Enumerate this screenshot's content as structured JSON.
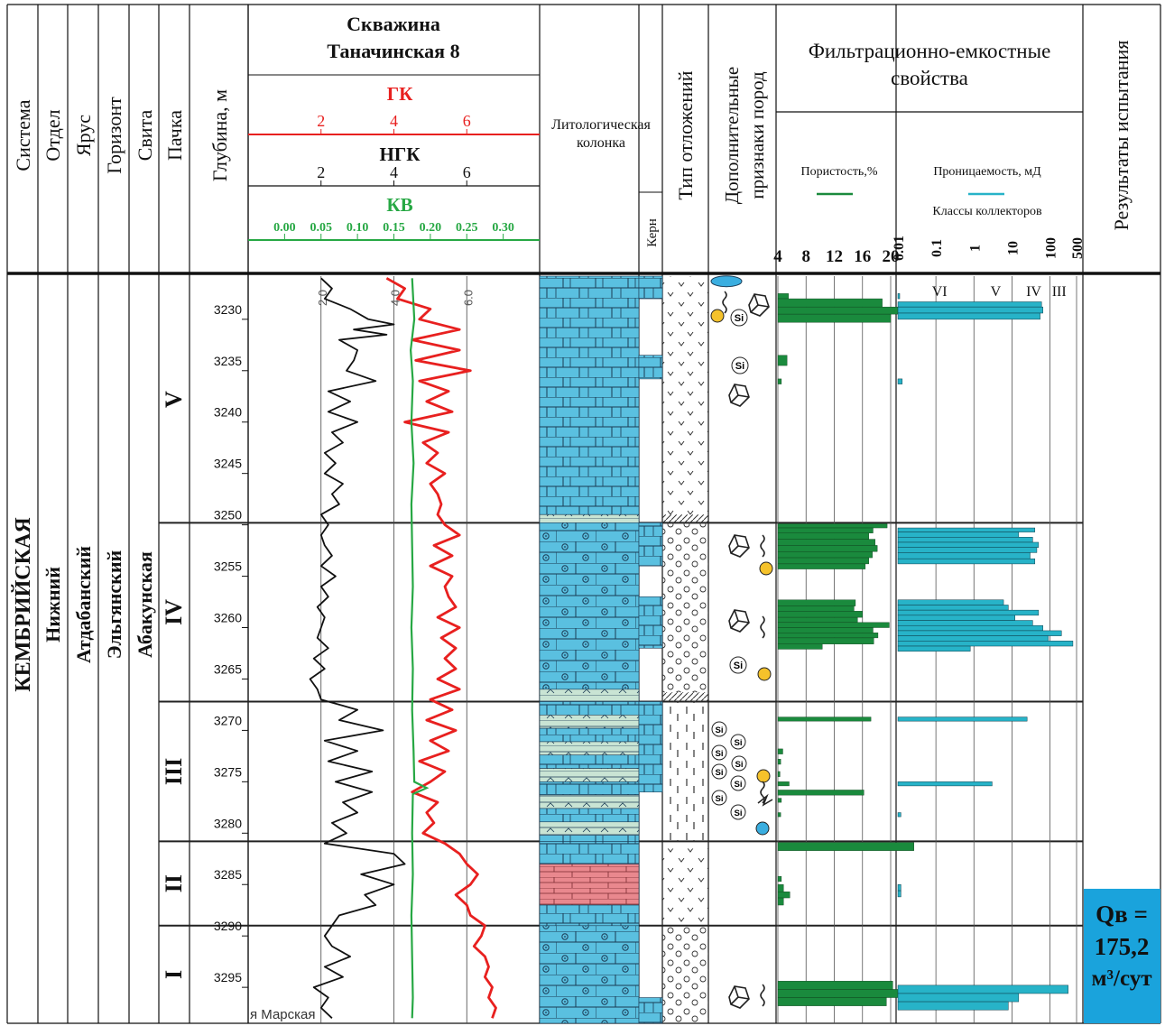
{
  "header": {
    "system": "Система",
    "department": "Отдел",
    "stage": "Ярус",
    "horizon": "Горизонт",
    "suite": "Свита",
    "pack": "Пачка",
    "depth": "Глубина, м",
    "well_title_line1": "Скважина",
    "well_title_line2": "Таначинская 8",
    "gk_label": "ГК",
    "ngk_label": "НГК",
    "kv_label": "КВ",
    "gk_ticks": [
      "2",
      "4",
      "6"
    ],
    "ngk_ticks": [
      "2",
      "4",
      "6"
    ],
    "kv_ticks": [
      "0.00",
      "0.05",
      "0.10",
      "0.15",
      "0.20",
      "0.25",
      "0.30"
    ],
    "litho_line1": "Литологическая",
    "litho_line2": "колонка",
    "core": "Керн",
    "deposit_type": "Тип отложений",
    "extra_line1": "Дополнительные",
    "extra_line2": "признаки пород",
    "fes_line1": "Фильтрационно-емкостные",
    "fes_line2": "свойства",
    "porosity": "Пористость,%",
    "permeability": "Проницаемость, мД",
    "collector_classes": "Классы коллекторов",
    "porosity_ticks": [
      "4",
      "8",
      "12",
      "16",
      "20"
    ],
    "perm_ticks": [
      "0.01",
      "0.1",
      "1",
      "10",
      "100",
      "500"
    ],
    "results": "Результаты испытания"
  },
  "strat": {
    "system": "КЕМБРИЙСКАЯ",
    "department": "Нижний",
    "stage": "Атдабанский",
    "horizon": "Эльгянский",
    "suite": "Абакунская"
  },
  "collector_class_labels": [
    "VI",
    "V",
    "IV",
    "III"
  ],
  "curve_tick_labels": [
    "2.0",
    "4.0",
    "6.0"
  ],
  "si_label": "Si",
  "marker_text": "я Марская",
  "test_result": {
    "line1": "Qв =",
    "line2": "175,2",
    "line3": "м³/сут",
    "color": "#1aa3dc"
  },
  "colors": {
    "gk": "#e8201f",
    "ngk": "#111111",
    "kv": "#27a844",
    "porosity": "#1a8a3d",
    "permeability": "#27b3c8",
    "limestone": "#5ac0e0",
    "pink": "#e9888e",
    "pale": "#c9e4d4"
  },
  "chart_data": {
    "type": "well_log",
    "depth_unit": "м",
    "depth_ticks": [
      3230,
      3235,
      3240,
      3245,
      3250,
      3255,
      3260,
      3265,
      3270,
      3275,
      3280,
      3285,
      3290,
      3295
    ],
    "depth_range": [
      3225.8,
      3298.5
    ],
    "packs": [
      {
        "name": "V",
        "top": 3225.8,
        "bottom": 3249.8
      },
      {
        "name": "IV",
        "top": 3249.8,
        "bottom": 3267.2
      },
      {
        "name": "III",
        "top": 3267.2,
        "bottom": 3280.8
      },
      {
        "name": "II",
        "top": 3280.8,
        "bottom": 3289.0
      },
      {
        "name": "I",
        "top": 3289.0,
        "bottom": 3298.5
      }
    ],
    "porosity_range": [
      4,
      20
    ],
    "porosity": [
      {
        "top": 3227.5,
        "bottom": 3228.0,
        "value": 5.5
      },
      {
        "top": 3228.0,
        "bottom": 3228.8,
        "value": 18.8
      },
      {
        "top": 3228.8,
        "bottom": 3229.5,
        "value": 23.2
      },
      {
        "top": 3229.5,
        "bottom": 3230.3,
        "value": 20.0
      },
      {
        "top": 3233.5,
        "bottom": 3234.5,
        "value": 5.3
      },
      {
        "top": 3235.8,
        "bottom": 3236.3,
        "value": 4.5
      },
      {
        "top": 3249.9,
        "bottom": 3250.3,
        "value": 19.5
      },
      {
        "top": 3250.3,
        "bottom": 3250.8,
        "value": 17.5
      },
      {
        "top": 3250.8,
        "bottom": 3251.4,
        "value": 16.9
      },
      {
        "top": 3251.4,
        "bottom": 3252.0,
        "value": 17.8
      },
      {
        "top": 3252.0,
        "bottom": 3252.6,
        "value": 18.1
      },
      {
        "top": 3252.6,
        "bottom": 3253.2,
        "value": 17.4
      },
      {
        "top": 3253.2,
        "bottom": 3253.8,
        "value": 16.9
      },
      {
        "top": 3253.8,
        "bottom": 3254.3,
        "value": 16.4
      },
      {
        "top": 3257.3,
        "bottom": 3257.9,
        "value": 15.0
      },
      {
        "top": 3257.9,
        "bottom": 3258.4,
        "value": 14.8
      },
      {
        "top": 3258.4,
        "bottom": 3259.0,
        "value": 16.0
      },
      {
        "top": 3259.0,
        "bottom": 3259.5,
        "value": 15.3
      },
      {
        "top": 3259.5,
        "bottom": 3260.0,
        "value": 19.8
      },
      {
        "top": 3260.0,
        "bottom": 3260.5,
        "value": 17.5
      },
      {
        "top": 3260.5,
        "bottom": 3261.0,
        "value": 18.2
      },
      {
        "top": 3261.0,
        "bottom": 3261.6,
        "value": 17.6
      },
      {
        "top": 3261.6,
        "bottom": 3262.1,
        "value": 10.3
      },
      {
        "top": 3268.7,
        "bottom": 3269.1,
        "value": 17.2
      },
      {
        "top": 3271.8,
        "bottom": 3272.3,
        "value": 4.7
      },
      {
        "top": 3272.8,
        "bottom": 3273.3,
        "value": 4.4
      },
      {
        "top": 3274.0,
        "bottom": 3274.5,
        "value": 4.3
      },
      {
        "top": 3275.0,
        "bottom": 3275.4,
        "value": 5.6
      },
      {
        "top": 3275.8,
        "bottom": 3276.3,
        "value": 16.2
      },
      {
        "top": 3276.6,
        "bottom": 3277.0,
        "value": 4.5
      },
      {
        "top": 3278.0,
        "bottom": 3278.4,
        "value": 4.4
      },
      {
        "top": 3280.9,
        "bottom": 3281.7,
        "value": 23.3
      },
      {
        "top": 3284.2,
        "bottom": 3284.7,
        "value": 4.5
      },
      {
        "top": 3285.0,
        "bottom": 3285.7,
        "value": 4.8
      },
      {
        "top": 3285.7,
        "bottom": 3286.3,
        "value": 5.7
      },
      {
        "top": 3286.3,
        "bottom": 3287.0,
        "value": 4.8
      },
      {
        "top": 3294.4,
        "bottom": 3295.2,
        "value": 20.3
      },
      {
        "top": 3295.2,
        "bottom": 3296.0,
        "value": 23.0
      },
      {
        "top": 3296.0,
        "bottom": 3296.8,
        "value": 19.4
      }
    ],
    "perm_range_log": [
      0.01,
      500
    ],
    "permeability": [
      {
        "top": 3227.5,
        "bottom": 3228.0,
        "value": 0.011
      },
      {
        "top": 3228.3,
        "bottom": 3228.8,
        "value": 60
      },
      {
        "top": 3228.8,
        "bottom": 3229.4,
        "value": 65
      },
      {
        "top": 3229.4,
        "bottom": 3230.0,
        "value": 55
      },
      {
        "top": 3235.8,
        "bottom": 3236.3,
        "value": 0.013
      },
      {
        "top": 3250.3,
        "bottom": 3250.7,
        "value": 40
      },
      {
        "top": 3250.7,
        "bottom": 3251.2,
        "value": 15
      },
      {
        "top": 3251.2,
        "bottom": 3251.7,
        "value": 35
      },
      {
        "top": 3251.7,
        "bottom": 3252.2,
        "value": 50
      },
      {
        "top": 3252.2,
        "bottom": 3252.7,
        "value": 45
      },
      {
        "top": 3252.7,
        "bottom": 3253.3,
        "value": 30
      },
      {
        "top": 3253.3,
        "bottom": 3253.8,
        "value": 40
      },
      {
        "top": 3257.3,
        "bottom": 3257.8,
        "value": 6
      },
      {
        "top": 3257.8,
        "bottom": 3258.3,
        "value": 8
      },
      {
        "top": 3258.3,
        "bottom": 3258.8,
        "value": 50
      },
      {
        "top": 3258.8,
        "bottom": 3259.3,
        "value": 12
      },
      {
        "top": 3259.3,
        "bottom": 3259.8,
        "value": 35
      },
      {
        "top": 3259.8,
        "bottom": 3260.3,
        "value": 65
      },
      {
        "top": 3260.3,
        "bottom": 3260.8,
        "value": 200
      },
      {
        "top": 3260.8,
        "bottom": 3261.3,
        "value": 90
      },
      {
        "top": 3261.3,
        "bottom": 3261.8,
        "value": 400
      },
      {
        "top": 3261.8,
        "bottom": 3262.3,
        "value": 0.8
      },
      {
        "top": 3268.7,
        "bottom": 3269.1,
        "value": 25
      },
      {
        "top": 3275.0,
        "bottom": 3275.4,
        "value": 3
      },
      {
        "top": 3278.0,
        "bottom": 3278.4,
        "value": 0.012
      },
      {
        "top": 3285.0,
        "bottom": 3285.6,
        "value": 0.012
      },
      {
        "top": 3285.6,
        "bottom": 3286.2,
        "value": 0.012
      },
      {
        "top": 3294.8,
        "bottom": 3295.6,
        "value": 300
      },
      {
        "top": 3295.6,
        "bottom": 3296.4,
        "value": 15
      },
      {
        "top": 3296.4,
        "bottom": 3297.2,
        "value": 8
      }
    ],
    "gk_range": [
      0,
      8
    ],
    "gk": [
      [
        3226,
        3.8
      ],
      [
        3227,
        4.3
      ],
      [
        3228,
        4.1
      ],
      [
        3229,
        5.0
      ],
      [
        3230,
        4.7
      ],
      [
        3231,
        5.8
      ],
      [
        3232,
        4.5
      ],
      [
        3233,
        5.8
      ],
      [
        3234,
        4.6
      ],
      [
        3235,
        6.1
      ],
      [
        3236,
        4.7
      ],
      [
        3237,
        5.5
      ],
      [
        3238,
        4.9
      ],
      [
        3239,
        5.6
      ],
      [
        3240,
        4.3
      ],
      [
        3241,
        5.5
      ],
      [
        3242,
        4.8
      ],
      [
        3243,
        5.2
      ],
      [
        3244,
        4.9
      ],
      [
        3245,
        5.4
      ],
      [
        3246,
        5.0
      ],
      [
        3247,
        5.2
      ],
      [
        3248,
        5.3
      ],
      [
        3249,
        5.2
      ],
      [
        3250,
        5.4
      ],
      [
        3251,
        5.8
      ],
      [
        3252,
        5.1
      ],
      [
        3253,
        5.6
      ],
      [
        3254,
        5.0
      ],
      [
        3255,
        5.6
      ],
      [
        3256,
        5.4
      ],
      [
        3257,
        5.5
      ],
      [
        3258,
        5.7
      ],
      [
        3259,
        5.2
      ],
      [
        3260,
        5.8
      ],
      [
        3261,
        5.3
      ],
      [
        3262,
        5.7
      ],
      [
        3263,
        5.4
      ],
      [
        3264,
        5.7
      ],
      [
        3265,
        5.2
      ],
      [
        3266,
        5.8
      ],
      [
        3267,
        5.0
      ],
      [
        3268,
        5.6
      ],
      [
        3269,
        4.9
      ],
      [
        3270,
        5.7
      ],
      [
        3271,
        5.0
      ],
      [
        3272,
        5.5
      ],
      [
        3273,
        4.7
      ],
      [
        3274,
        5.4
      ],
      [
        3275,
        5.0
      ],
      [
        3276,
        4.5
      ],
      [
        3277,
        5.2
      ],
      [
        3278,
        4.9
      ],
      [
        3279,
        5.1
      ],
      [
        3280,
        4.8
      ],
      [
        3281,
        5.4
      ],
      [
        3282,
        5.8
      ],
      [
        3283,
        6.0
      ],
      [
        3284,
        6.3
      ],
      [
        3285,
        6.1
      ],
      [
        3286,
        5.7
      ],
      [
        3287,
        6.0
      ],
      [
        3288,
        6.1
      ],
      [
        3289,
        6.5
      ],
      [
        3290,
        6.4
      ],
      [
        3291,
        6.2
      ],
      [
        3292,
        6.5
      ],
      [
        3293,
        6.6
      ],
      [
        3294,
        6.5
      ],
      [
        3295,
        6.7
      ],
      [
        3296,
        6.6
      ],
      [
        3297,
        6.8
      ],
      [
        3298,
        6.7
      ]
    ],
    "ngk_range": [
      0,
      8
    ],
    "ngk": [
      [
        3226,
        2.0
      ],
      [
        3227,
        2.3
      ],
      [
        3228,
        2.1
      ],
      [
        3229,
        2.8
      ],
      [
        3230,
        3.3
      ],
      [
        3230.5,
        4.0
      ],
      [
        3231,
        2.9
      ],
      [
        3231.5,
        3.8
      ],
      [
        3232,
        2.5
      ],
      [
        3233,
        3.0
      ],
      [
        3234,
        2.9
      ],
      [
        3235,
        2.7
      ],
      [
        3236,
        3.5
      ],
      [
        3237,
        2.2
      ],
      [
        3238,
        2.8
      ],
      [
        3239,
        2.2
      ],
      [
        3240,
        3.0
      ],
      [
        3241,
        2.3
      ],
      [
        3242,
        2.6
      ],
      [
        3243,
        2.1
      ],
      [
        3244,
        2.4
      ],
      [
        3245,
        2.1
      ],
      [
        3246,
        2.6
      ],
      [
        3247,
        2.3
      ],
      [
        3248,
        2.5
      ],
      [
        3249,
        2.0
      ],
      [
        3250,
        2.2
      ],
      [
        3251,
        2.0
      ],
      [
        3252,
        2.1
      ],
      [
        3253,
        2.3
      ],
      [
        3254,
        2.0
      ],
      [
        3255,
        2.4
      ],
      [
        3256,
        2.0
      ],
      [
        3257,
        2.2
      ],
      [
        3258,
        1.9
      ],
      [
        3259,
        2.1
      ],
      [
        3260,
        2.0
      ],
      [
        3261,
        1.9
      ],
      [
        3262,
        2.2
      ],
      [
        3263,
        1.8
      ],
      [
        3264,
        2.1
      ],
      [
        3265,
        1.7
      ],
      [
        3266,
        1.9
      ],
      [
        3267,
        2.0
      ],
      [
        3268,
        3.0
      ],
      [
        3269,
        2.5
      ],
      [
        3270,
        3.7
      ],
      [
        3271,
        2.1
      ],
      [
        3272,
        3.0
      ],
      [
        3273,
        2.2
      ],
      [
        3274,
        3.4
      ],
      [
        3275,
        2.4
      ],
      [
        3276,
        3.4
      ],
      [
        3277,
        2.6
      ],
      [
        3278,
        3.0
      ],
      [
        3279,
        2.3
      ],
      [
        3280,
        2.7
      ],
      [
        3281,
        2.1
      ],
      [
        3282,
        4.0
      ],
      [
        3283,
        4.3
      ],
      [
        3284,
        3.1
      ],
      [
        3285,
        4.0
      ],
      [
        3286,
        3.2
      ],
      [
        3287,
        3.5
      ],
      [
        3288,
        2.5
      ],
      [
        3289,
        2.3
      ],
      [
        3290,
        2.1
      ],
      [
        3291,
        2.3
      ],
      [
        3292,
        2.8
      ],
      [
        3293,
        2.1
      ],
      [
        3294,
        2.6
      ],
      [
        3295,
        1.8
      ],
      [
        3296,
        2.2
      ],
      [
        3297,
        2.0
      ],
      [
        3298,
        2.3
      ]
    ],
    "kv_range": [
      -0.05,
      0.35
    ],
    "kv": [
      [
        3226,
        0.175
      ],
      [
        3230,
        0.178
      ],
      [
        3233,
        0.173
      ],
      [
        3236,
        0.176
      ],
      [
        3240,
        0.174
      ],
      [
        3244,
        0.177
      ],
      [
        3248,
        0.174
      ],
      [
        3252,
        0.175
      ],
      [
        3256,
        0.176
      ],
      [
        3260,
        0.174
      ],
      [
        3264,
        0.176
      ],
      [
        3268,
        0.175
      ],
      [
        3272,
        0.177
      ],
      [
        3275,
        0.178
      ],
      [
        3275.6,
        0.195
      ],
      [
        3276.2,
        0.176
      ],
      [
        3280,
        0.175
      ],
      [
        3284,
        0.176
      ],
      [
        3288,
        0.174
      ],
      [
        3292,
        0.175
      ],
      [
        3296,
        0.176
      ],
      [
        3298,
        0.175
      ]
    ]
  }
}
